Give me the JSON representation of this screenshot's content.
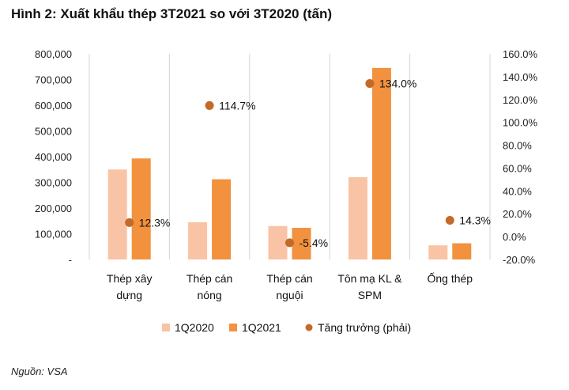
{
  "title": "Hình 2: Xuất khẩu thép 3T2021 so với 3T2020 (tấn)",
  "source": "Nguồn: VSA",
  "chart_data": {
    "type": "bar",
    "categories": [
      [
        "Thép xây",
        "dựng"
      ],
      [
        "Thép cán",
        "nóng"
      ],
      [
        "Thép cán",
        "nguội"
      ],
      [
        "Tôn mạ KL &",
        "SPM"
      ],
      [
        "Ống thép"
      ]
    ],
    "series": [
      {
        "name": "1Q2020",
        "values": [
          350000,
          145000,
          130000,
          320000,
          55000
        ],
        "color": "#F9C3A5",
        "axis": "left"
      },
      {
        "name": "1Q2021",
        "values": [
          393000,
          312000,
          123000,
          745000,
          63000
        ],
        "color": "#F2913E",
        "axis": "left"
      },
      {
        "name": "Tăng trưởng (phải)",
        "values": [
          12.3,
          114.7,
          -5.4,
          134.0,
          14.3
        ],
        "color": "#C46A28",
        "axis": "right",
        "marker": "dot"
      }
    ],
    "data_labels": [
      "12.3%",
      "114.7%",
      "-5.4%",
      "134.0%",
      "14.3%"
    ],
    "y_left": {
      "min": 0,
      "max": 800000,
      "step": 100000,
      "ticks": [
        "-",
        "100,000",
        "200,000",
        "300,000",
        "400,000",
        "500,000",
        "600,000",
        "700,000",
        "800,000"
      ]
    },
    "y_right": {
      "min": -20,
      "max": 160,
      "step": 20,
      "ticks": [
        "-20.0%",
        "0.0%",
        "20.0%",
        "40.0%",
        "60.0%",
        "80.0%",
        "100.0%",
        "120.0%",
        "140.0%",
        "160.0%"
      ]
    },
    "grid": "vertical category separators",
    "legend_position": "bottom"
  }
}
